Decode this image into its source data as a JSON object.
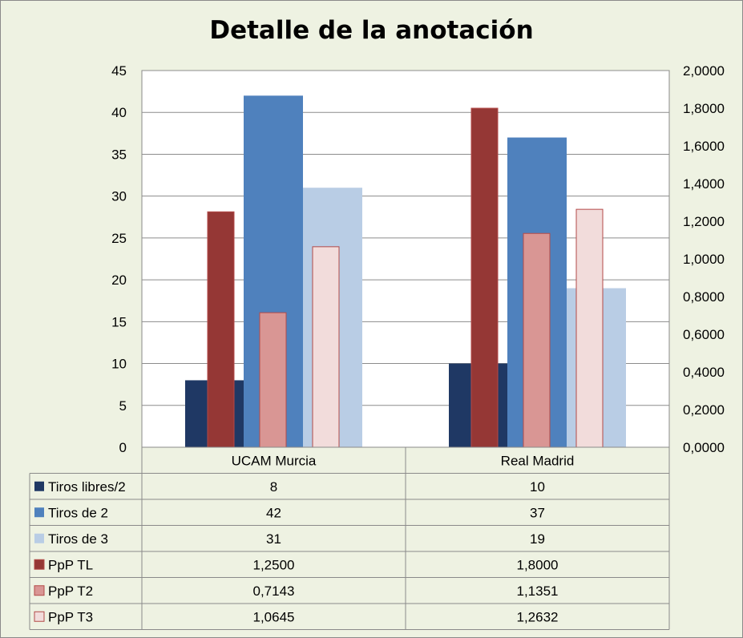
{
  "chart_data": {
    "type": "bar",
    "title": "Detalle de la anotación",
    "categories": [
      "UCAM Murcia",
      "Real Madrid"
    ],
    "y_left": {
      "range": [
        0,
        45
      ],
      "ticks": [
        "0",
        "5",
        "10",
        "15",
        "20",
        "25",
        "30",
        "35",
        "40",
        "45"
      ]
    },
    "y_right": {
      "range": [
        0,
        2
      ],
      "ticks": [
        "0,0000",
        "0,2000",
        "0,4000",
        "0,6000",
        "0,8000",
        "1,0000",
        "1,2000",
        "1,4000",
        "1,6000",
        "1,8000",
        "2,0000"
      ]
    },
    "grid": true,
    "legend": "data-table",
    "series": [
      {
        "name": "Tiros libres/2",
        "axis": "left",
        "color": "#1f3864",
        "values": [
          8,
          10
        ],
        "labels": [
          "8",
          "10"
        ]
      },
      {
        "name": "Tiros de 2",
        "axis": "left",
        "color": "#4f81bd",
        "values": [
          42,
          37
        ],
        "labels": [
          "42",
          "37"
        ]
      },
      {
        "name": "Tiros de 3",
        "axis": "left",
        "color": "#b9cde5",
        "values": [
          31,
          19
        ],
        "labels": [
          "31",
          "19"
        ]
      },
      {
        "name": "PpP TL",
        "axis": "right",
        "color": "#953735",
        "values": [
          1.25,
          1.8
        ],
        "labels": [
          "1,2500",
          "1,8000"
        ]
      },
      {
        "name": "PpP T2",
        "axis": "right",
        "color": "#d99694",
        "values": [
          0.7143,
          1.1351
        ],
        "labels": [
          "0,7143",
          "1,1351"
        ]
      },
      {
        "name": "PpP T3",
        "axis": "right",
        "color": "#f2dcdb",
        "values": [
          1.0645,
          1.2632
        ],
        "labels": [
          "1,0645",
          "1,2632"
        ]
      }
    ]
  }
}
